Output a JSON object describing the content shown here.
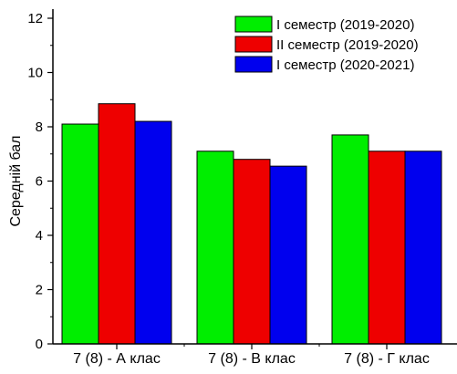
{
  "chart_data": {
    "type": "bar",
    "title": "",
    "xlabel": "",
    "ylabel": "Середній бал",
    "ylim": [
      0,
      12
    ],
    "yticks": [
      0,
      2,
      4,
      6,
      8,
      10,
      12
    ],
    "grid": false,
    "legend_position": "top-right",
    "categories": [
      "7 (8) - А клас",
      "7 (8) - В клас",
      "7 (8) - Г клас"
    ],
    "series": [
      {
        "name": "І семестр (2019-2020)",
        "color": "#00ee00",
        "values": [
          8.1,
          7.1,
          7.7
        ]
      },
      {
        "name": "ІІ семестр (2019-2020)",
        "color": "#ee0000",
        "values": [
          8.85,
          6.8,
          7.1
        ]
      },
      {
        "name": "І семестр (2020-2021)",
        "color": "#0000ee",
        "values": [
          8.2,
          6.55,
          7.1
        ]
      }
    ]
  }
}
